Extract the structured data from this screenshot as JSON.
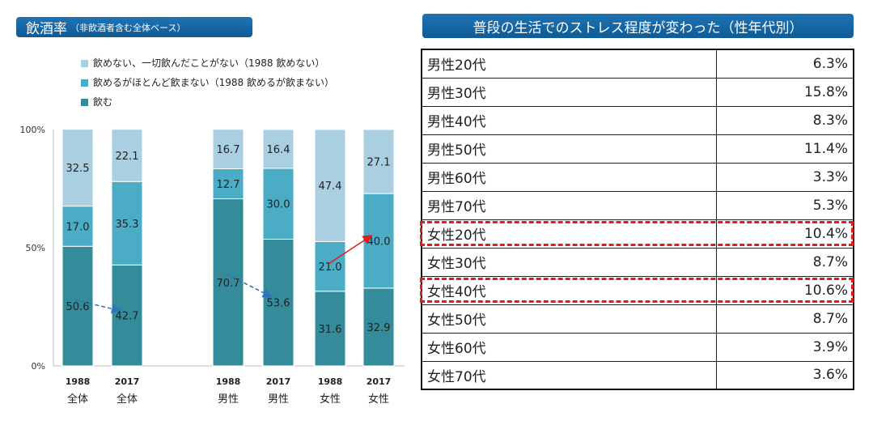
{
  "left_title": {
    "main": "飲酒率",
    "sub": "（非飲酒者含む全体ベース）"
  },
  "right_title": "普段の生活でのストレス程度が変わった（性年代別）",
  "chart_data": {
    "type": "bar",
    "stacked": true,
    "normalized_percent": true,
    "title": "飲酒率（非飲酒者含む全体ベース）",
    "y_ticks": [
      "0%",
      "50%",
      "100%"
    ],
    "ylim": [
      0,
      100
    ],
    "categories": [
      {
        "year": "1988",
        "group": "全体"
      },
      {
        "year": "2017",
        "group": "全体"
      },
      {
        "year": "1988",
        "group": "男性"
      },
      {
        "year": "2017",
        "group": "男性"
      },
      {
        "year": "1988",
        "group": "女性"
      },
      {
        "year": "2017",
        "group": "女性"
      }
    ],
    "series": [
      {
        "name": "飲む",
        "color": "#348b9a",
        "values": [
          50.6,
          42.7,
          70.7,
          53.6,
          31.6,
          32.9
        ],
        "labels": [
          "50.6",
          "42.7",
          "70.7",
          "53.6",
          "31.6",
          "32.9"
        ]
      },
      {
        "name": "飲めるがほとんど飲まない（1988 飲めるが飲まない）",
        "color": "#4bacc6",
        "values": [
          17.0,
          35.3,
          12.7,
          30.0,
          21.0,
          40.0
        ],
        "labels": [
          "17.0",
          "35.3",
          "12.7",
          "30.0",
          "21.0",
          "40.0"
        ]
      },
      {
        "name": "飲めない、一切飲んだことがない（1988 飲めない）",
        "color": "#a9cfe0",
        "values": [
          32.5,
          22.1,
          16.7,
          16.4,
          47.4,
          27.1
        ],
        "labels": [
          "32.5",
          "22.1",
          "16.7",
          "16.4",
          "47.4",
          "27.1"
        ]
      }
    ],
    "legend_order": [
      2,
      1,
      0
    ],
    "annotations": [
      {
        "type": "arrow",
        "style": "dashed",
        "color": "#2e75b6",
        "from_category": 0,
        "to_category": 1,
        "series": "飲む"
      },
      {
        "type": "arrow",
        "style": "dashed",
        "color": "#2e75b6",
        "from_category": 2,
        "to_category": 3,
        "series": "飲む"
      },
      {
        "type": "arrow",
        "style": "solid",
        "color": "#e31a1c",
        "from_category": 4,
        "to_category": 5,
        "series": "飲めるがほとんど飲まない"
      }
    ]
  },
  "stress_table": {
    "rows": [
      {
        "label": "男性20代",
        "value": "6.3%",
        "highlighted": false
      },
      {
        "label": "男性30代",
        "value": "15.8%",
        "highlighted": false
      },
      {
        "label": "男性40代",
        "value": "8.3%",
        "highlighted": false
      },
      {
        "label": "男性50代",
        "value": "11.4%",
        "highlighted": false
      },
      {
        "label": "男性60代",
        "value": "3.3%",
        "highlighted": false
      },
      {
        "label": "男性70代",
        "value": "5.3%",
        "highlighted": false
      },
      {
        "label": "女性20代",
        "value": "10.4%",
        "highlighted": true
      },
      {
        "label": "女性30代",
        "value": "8.7%",
        "highlighted": false
      },
      {
        "label": "女性40代",
        "value": "10.6%",
        "highlighted": true
      },
      {
        "label": "女性50代",
        "value": "8.7%",
        "highlighted": false
      },
      {
        "label": "女性60代",
        "value": "3.9%",
        "highlighted": false
      },
      {
        "label": "女性70代",
        "value": "3.6%",
        "highlighted": false
      }
    ],
    "highlight_color": "#e31a1c"
  }
}
